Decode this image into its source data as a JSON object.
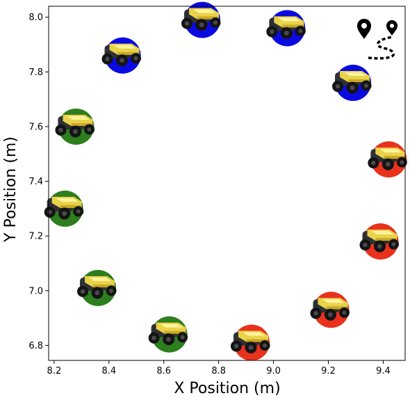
{
  "chart_data": {
    "type": "scatter",
    "title": "",
    "xlabel": "X Position (m)",
    "ylabel": "Y Position (m)",
    "xlim": [
      8.18,
      9.48
    ],
    "ylim": [
      6.745,
      8.04
    ],
    "xticks": [
      "8.2",
      "8.4",
      "8.6",
      "8.8",
      "9.0",
      "9.2",
      "9.4"
    ],
    "yticks": [
      "6.8",
      "7.0",
      "7.2",
      "7.4",
      "7.6",
      "7.8",
      "8.0"
    ],
    "grid": false,
    "legend": "none",
    "marker_icon": "robot-rover-icon",
    "icon_legend": "route-pins-icon",
    "points": [
      {
        "x": 8.92,
        "y": 6.81,
        "color": "#e8321e"
      },
      {
        "x": 9.21,
        "y": 6.93,
        "color": "#e8321e"
      },
      {
        "x": 9.39,
        "y": 7.18,
        "color": "#e8321e"
      },
      {
        "x": 9.42,
        "y": 7.48,
        "color": "#e8321e"
      },
      {
        "x": 9.29,
        "y": 7.76,
        "color": "#0a0ae0"
      },
      {
        "x": 9.05,
        "y": 7.96,
        "color": "#0a0ae0"
      },
      {
        "x": 8.74,
        "y": 7.99,
        "color": "#0a0ae0"
      },
      {
        "x": 8.45,
        "y": 7.86,
        "color": "#0a0ae0"
      },
      {
        "x": 8.28,
        "y": 7.6,
        "color": "#2e7d1e"
      },
      {
        "x": 8.24,
        "y": 7.3,
        "color": "#2e7d1e"
      },
      {
        "x": 8.36,
        "y": 7.01,
        "color": "#2e7d1e"
      },
      {
        "x": 8.62,
        "y": 6.84,
        "color": "#2e7d1e"
      }
    ]
  }
}
